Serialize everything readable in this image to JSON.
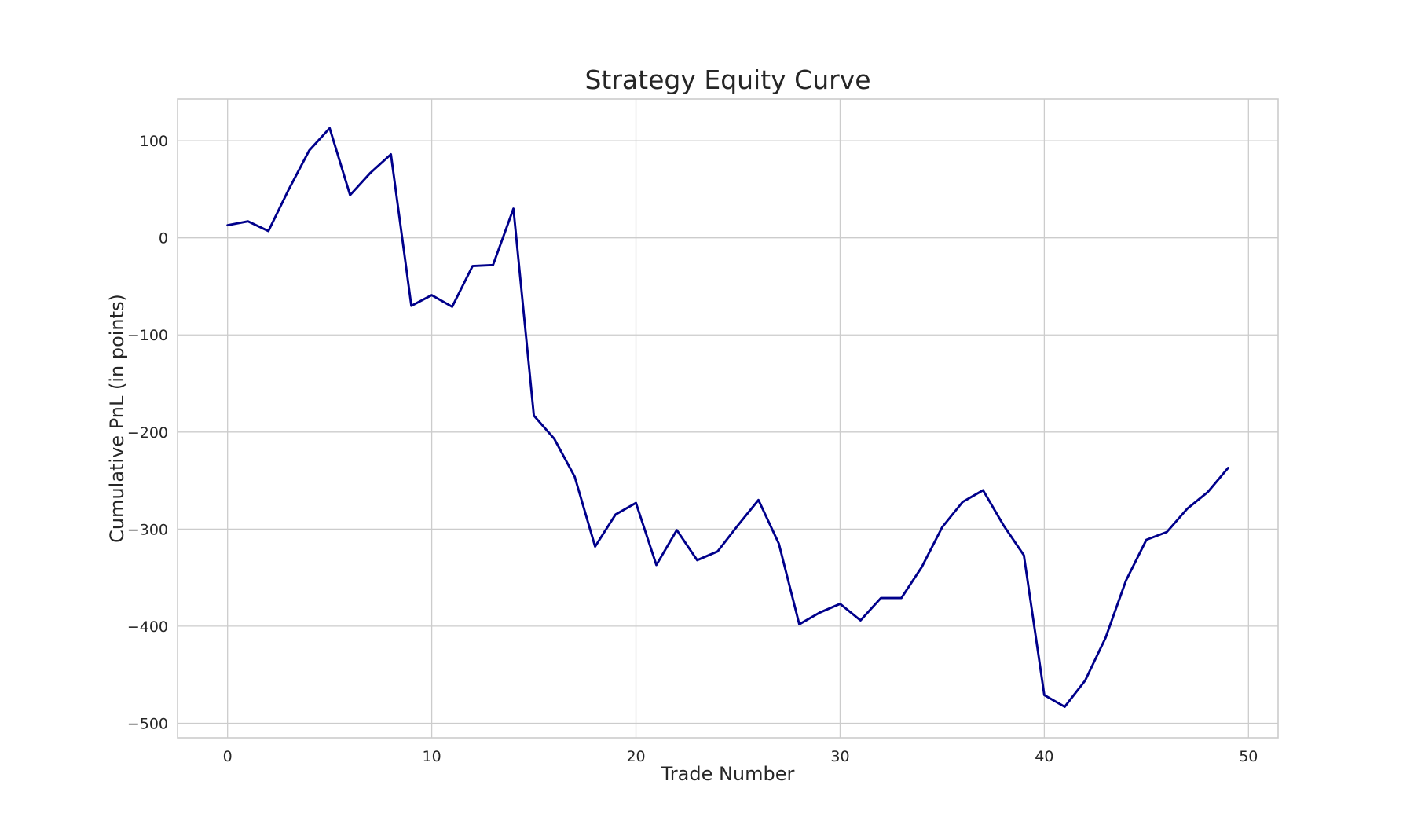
{
  "chart_data": {
    "type": "line",
    "title": "Strategy Equity Curve",
    "xlabel": "Trade Number",
    "ylabel": "Cumulative PnL (in points)",
    "xlim": [
      -2.45,
      51.45
    ],
    "ylim": [
      -515,
      143
    ],
    "xticks": [
      0,
      10,
      20,
      30,
      40,
      50
    ],
    "yticks": [
      100,
      0,
      -100,
      -200,
      -300,
      -400,
      -500
    ],
    "grid": true,
    "legend": "none",
    "colors": {
      "line": "#00008B",
      "grid": "#cccccc",
      "text": "#262626"
    },
    "series": [
      {
        "x": [
          0,
          1,
          2,
          3,
          4,
          5,
          6,
          7,
          8,
          9,
          10,
          11,
          12,
          13,
          14,
          15,
          16,
          17,
          18,
          19,
          20,
          21,
          22,
          23,
          24,
          25,
          26,
          27,
          28,
          29,
          30,
          31,
          32,
          33,
          34,
          35,
          36,
          37,
          38,
          39,
          40,
          41,
          42,
          43,
          44,
          45,
          46,
          47,
          48,
          49
        ],
        "values": [
          13,
          17,
          7,
          50,
          90,
          113,
          44,
          67,
          86,
          -70,
          -59,
          -71,
          -29,
          -28,
          30,
          -183,
          -207,
          -246,
          -318,
          -285,
          -273,
          -337,
          -301,
          -332,
          -323,
          -296,
          -270,
          -315,
          -398,
          -386,
          -377,
          -394,
          -371,
          -371,
          -339,
          -298,
          -272,
          -260,
          -296,
          -327,
          -471,
          -483,
          -456,
          -412,
          -353,
          -311,
          -303,
          -279,
          -262,
          -237
        ]
      }
    ]
  }
}
